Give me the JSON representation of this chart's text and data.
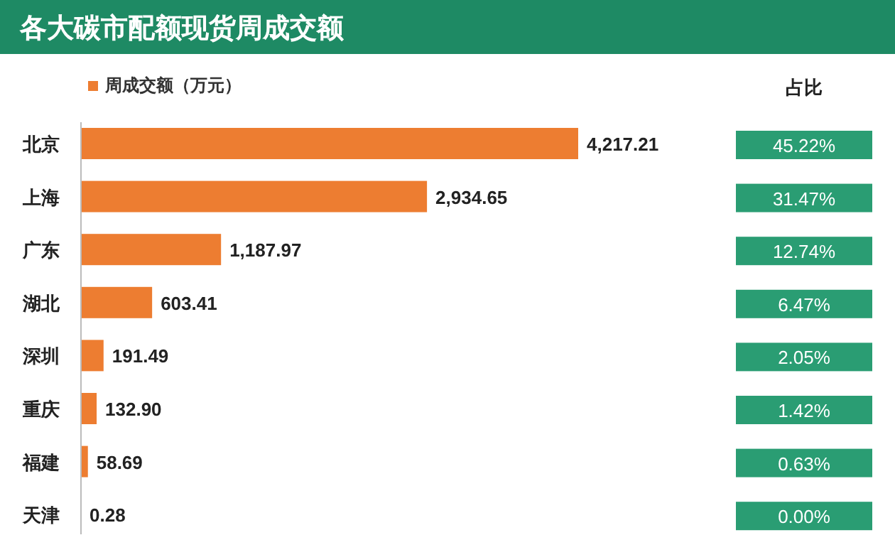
{
  "chart_data": [
    {
      "type": "bar",
      "orientation": "horizontal",
      "title": "各大碳市配额现货周成交额",
      "categories": [
        "北京",
        "上海",
        "广东",
        "湖北",
        "深圳",
        "重庆",
        "福建",
        "天津"
      ],
      "legend": "top left",
      "series": [
        {
          "name": "周成交额（万元）",
          "color": "#ed7d31",
          "values": [
            4217.21,
            2934.65,
            1187.97,
            603.41,
            191.49,
            132.9,
            58.69,
            0.28
          ],
          "value_labels": [
            "4,217.21",
            "2,934.65",
            "1,187.97",
            "603.41",
            "191.49",
            "132.90",
            "58.69",
            "0.28"
          ]
        }
      ]
    },
    {
      "type": "other",
      "title": "占比",
      "annotations": [
        "45.22%",
        "31.47%",
        "12.74%",
        "6.47%",
        "2.05%",
        "1.42%",
        "0.63%",
        "0.00%"
      ],
      "colors": [
        "#2a9d73",
        "#2a9d73",
        "#2a9d73",
        "#2a9d73",
        "#2a9d73",
        "#2a9d73",
        "#2a9d73",
        "#2a9d73"
      ]
    }
  ]
}
